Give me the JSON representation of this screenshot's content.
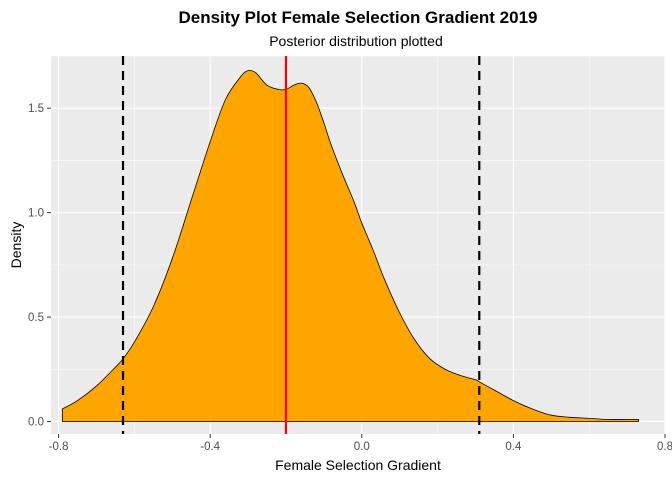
{
  "chart_data": {
    "type": "area",
    "title": "Density Plot Female Selection Gradient 2019",
    "subtitle": "Posterior distribution plotted",
    "xlabel": "Female Selection Gradient",
    "ylabel": "Density",
    "xlim": [
      -0.82,
      0.8
    ],
    "ylim": [
      -0.06,
      1.75
    ],
    "x_ticks": [
      -0.8,
      -0.4,
      0.0,
      0.4,
      0.8
    ],
    "x_tick_labels": [
      "-0.8",
      "-0.4",
      "0.0",
      "0.4",
      "0.8"
    ],
    "y_ticks": [
      0.0,
      0.5,
      1.0,
      1.5
    ],
    "y_tick_labels": [
      "0.0",
      "0.5",
      "1.0",
      "1.5"
    ],
    "grid": true,
    "background": "#EBEBEB",
    "fill_color": "#FFA500",
    "outline_color": "#000000",
    "density": {
      "x": [
        -0.79,
        -0.75,
        -0.7,
        -0.65,
        -0.63,
        -0.6,
        -0.55,
        -0.5,
        -0.45,
        -0.4,
        -0.36,
        -0.32,
        -0.3,
        -0.28,
        -0.25,
        -0.22,
        -0.2,
        -0.18,
        -0.16,
        -0.14,
        -0.12,
        -0.1,
        -0.08,
        -0.05,
        -0.02,
        0.0,
        0.03,
        0.06,
        0.1,
        0.14,
        0.18,
        0.22,
        0.26,
        0.3,
        0.31,
        0.35,
        0.4,
        0.45,
        0.5,
        0.55,
        0.6,
        0.65,
        0.7,
        0.73
      ],
      "y": [
        0.06,
        0.1,
        0.17,
        0.26,
        0.3,
        0.38,
        0.55,
        0.78,
        1.06,
        1.34,
        1.54,
        1.65,
        1.68,
        1.67,
        1.61,
        1.59,
        1.59,
        1.61,
        1.62,
        1.6,
        1.53,
        1.43,
        1.32,
        1.18,
        1.05,
        0.95,
        0.82,
        0.68,
        0.52,
        0.39,
        0.3,
        0.25,
        0.22,
        0.2,
        0.19,
        0.15,
        0.1,
        0.06,
        0.03,
        0.02,
        0.015,
        0.01,
        0.01,
        0.01
      ]
    },
    "vlines": [
      {
        "x": -0.63,
        "color": "#000000",
        "style": "dashed"
      },
      {
        "x": -0.2,
        "color": "#FF0000",
        "style": "solid"
      },
      {
        "x": 0.31,
        "color": "#000000",
        "style": "dashed"
      }
    ]
  }
}
